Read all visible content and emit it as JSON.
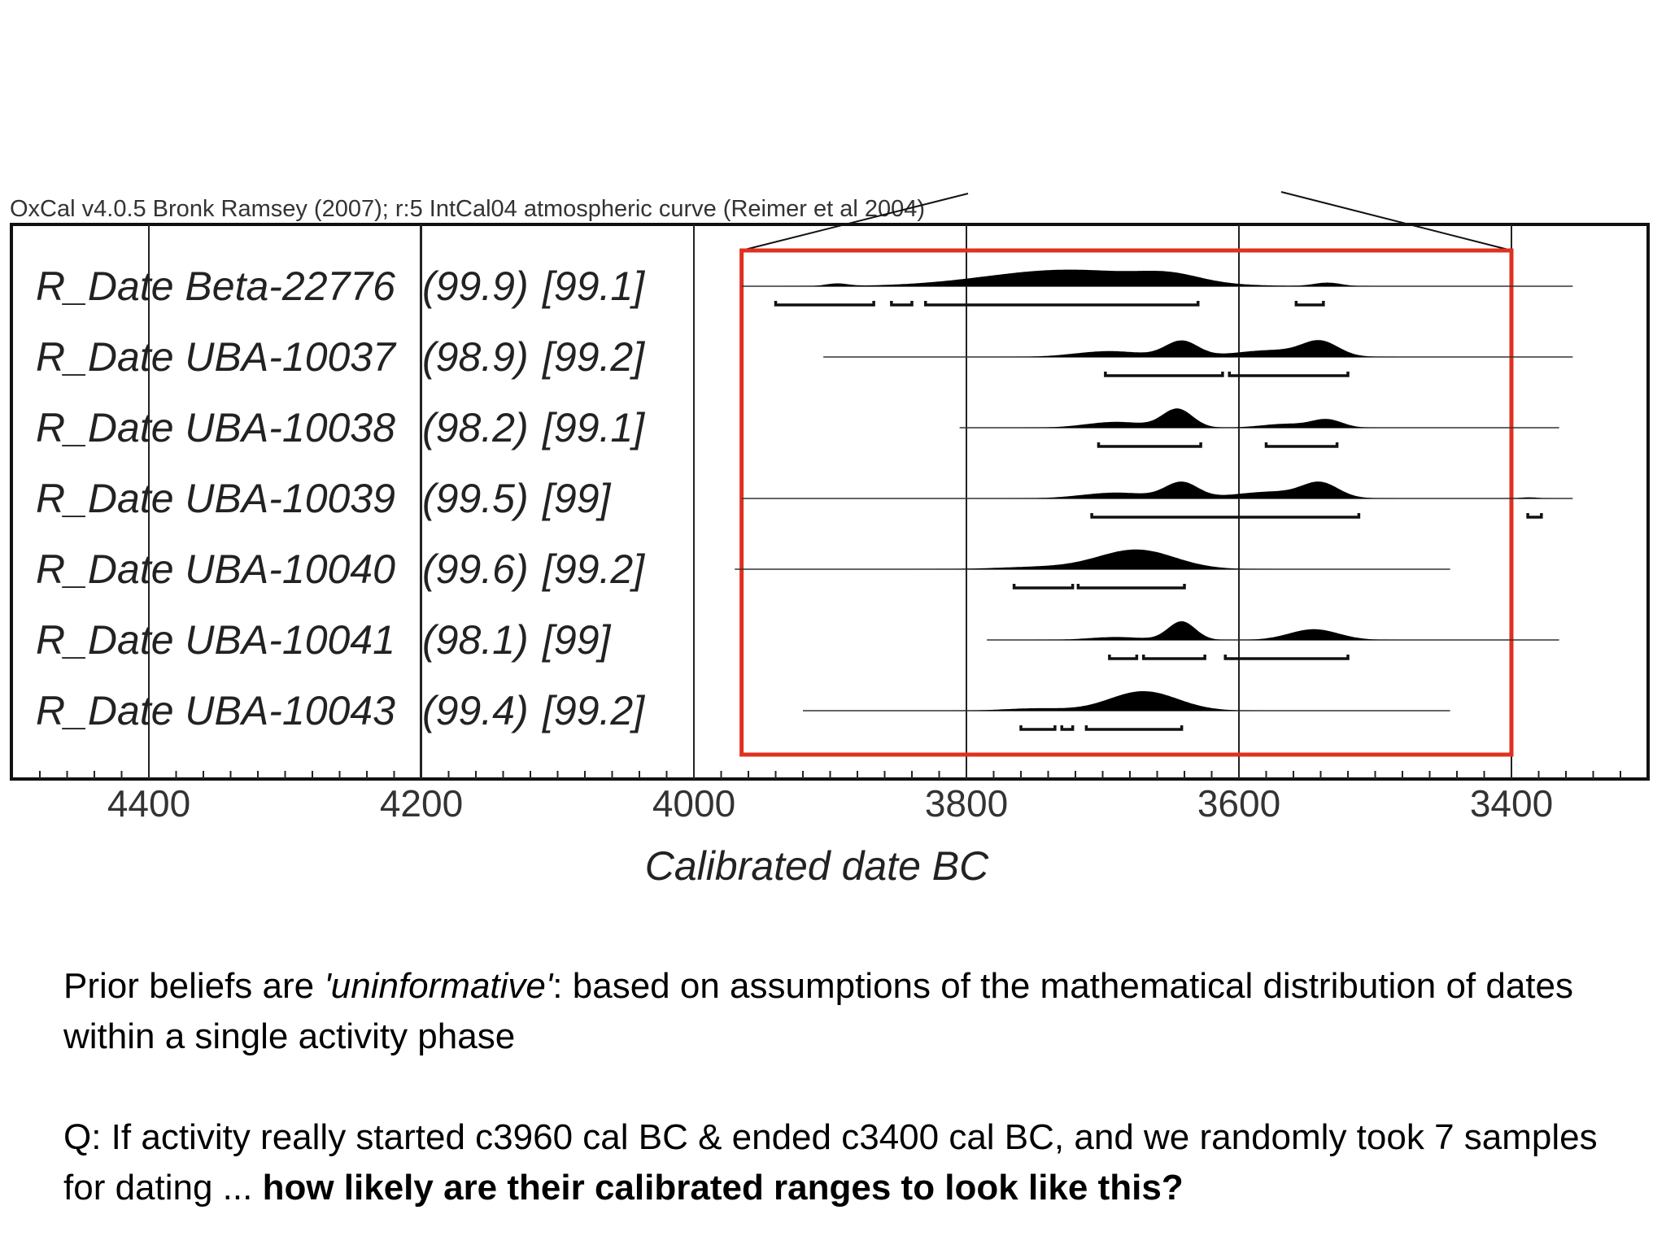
{
  "header": "OxCal v4.0.5 Bronk Ramsey (2007); r:5 IntCal04 atmospheric curve (Reimer et al 2004)",
  "chart_data": {
    "type": "ridge",
    "xlabel": "Calibrated date BC",
    "x_reversed": true,
    "xlim": [
      4500,
      3300
    ],
    "ticks": [
      4400,
      4200,
      4000,
      3800,
      3600,
      3400
    ],
    "tick_labels": [
      "4400",
      "4200",
      "4000",
      "3800",
      "3600",
      "3400"
    ],
    "highlight_box": {
      "color": "#e03020",
      "from": 3965,
      "to": 3400
    },
    "series": [
      {
        "name": "R_Date Beta-22776",
        "a1": "(99.9)",
        "a2": "[99.1]",
        "line": [
          3965,
          3355
        ],
        "peaks": [
          [
            3895,
            8,
            0.13
          ],
          [
            3725,
            60,
            0.85
          ],
          [
            3650,
            22,
            0.35
          ],
          [
            3535,
            10,
            0.18
          ]
        ],
        "ranges": [
          [
            3940,
            3868
          ],
          [
            3855,
            3840
          ],
          [
            3830,
            3630
          ],
          [
            3558,
            3538
          ]
        ]
      },
      {
        "name": "R_Date UBA-10037",
        "a1": "(98.9)",
        "a2": "[99.2]",
        "line": [
          3905,
          3355
        ],
        "peaks": [
          [
            3695,
            25,
            0.3
          ],
          [
            3642,
            12,
            0.8
          ],
          [
            3575,
            28,
            0.35
          ],
          [
            3540,
            13,
            0.7
          ]
        ],
        "ranges": [
          [
            3698,
            3612
          ],
          [
            3607,
            3520
          ]
        ]
      },
      {
        "name": "R_Date UBA-10038",
        "a1": "(98.2)",
        "a2": "[99.1]",
        "line": [
          3805,
          3365
        ],
        "peaks": [
          [
            3690,
            22,
            0.3
          ],
          [
            3645,
            11,
            0.95
          ],
          [
            3565,
            18,
            0.2
          ],
          [
            3535,
            11,
            0.4
          ]
        ],
        "ranges": [
          [
            3703,
            3628
          ],
          [
            3580,
            3528
          ]
        ]
      },
      {
        "name": "R_Date UBA-10039",
        "a1": "(99.5)",
        "a2": "[99]",
        "line": [
          3965,
          3355
        ],
        "peaks": [
          [
            3690,
            25,
            0.3
          ],
          [
            3642,
            12,
            0.8
          ],
          [
            3575,
            28,
            0.35
          ],
          [
            3540,
            13,
            0.7
          ],
          [
            3387,
            6,
            0.06
          ]
        ],
        "ranges": [
          [
            3708,
            3512
          ],
          [
            3388,
            3378
          ]
        ]
      },
      {
        "name": "R_Date UBA-10040",
        "a1": "(99.6)",
        "a2": "[99.2]",
        "line": [
          3970,
          3445
        ],
        "peaks": [
          [
            3745,
            32,
            0.12
          ],
          [
            3675,
            28,
            1.0
          ]
        ],
        "ranges": [
          [
            3765,
            3722
          ],
          [
            3718,
            3640
          ]
        ]
      },
      {
        "name": "R_Date UBA-10041",
        "a1": "(98.1)",
        "a2": "[99]",
        "line": [
          3785,
          3365
        ],
        "peaks": [
          [
            3690,
            20,
            0.15
          ],
          [
            3642,
            10,
            0.95
          ],
          [
            3545,
            18,
            0.55
          ]
        ],
        "ranges": [
          [
            3695,
            3675
          ],
          [
            3670,
            3625
          ],
          [
            3610,
            3520
          ]
        ]
      },
      {
        "name": "R_Date UBA-10043",
        "a1": "(99.4)",
        "a2": "[99.2]",
        "line": [
          3920,
          3445
        ],
        "peaks": [
          [
            3750,
            22,
            0.12
          ],
          [
            3670,
            25,
            1.0
          ]
        ],
        "ranges": [
          [
            3760,
            3735
          ],
          [
            3730,
            3722
          ],
          [
            3712,
            3642
          ]
        ]
      }
    ]
  },
  "caption": {
    "p1": {
      "before": "Prior beliefs are ",
      "italic": "'uninformative'",
      "after": ": based on assumptions of the mathematical distribution of dates within a single activity phase"
    },
    "p2": {
      "before": "Q: If activity really started c3960 cal BC & ended c3400 cal BC, and we randomly took 7 samples for dating ... ",
      "bold": "how likely are their calibrated ranges to look like this?"
    }
  }
}
